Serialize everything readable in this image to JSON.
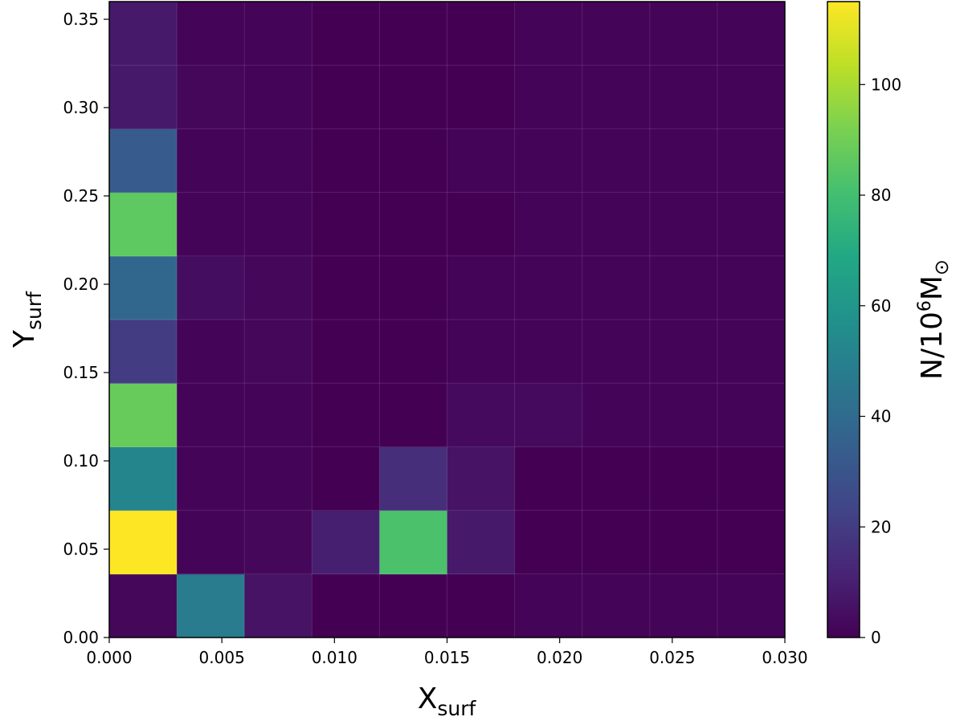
{
  "chart_data": {
    "type": "heatmap",
    "x_edges": [
      0.0,
      0.003,
      0.006,
      0.009,
      0.012,
      0.015,
      0.018,
      0.021,
      0.024,
      0.027,
      0.03
    ],
    "y_edges": [
      0.0,
      0.036,
      0.072,
      0.108,
      0.144,
      0.18,
      0.216,
      0.252,
      0.288,
      0.324,
      0.36
    ],
    "values": [
      [
        2,
        48,
        6,
        0,
        0,
        0,
        1,
        1,
        1,
        1
      ],
      [
        115,
        1,
        2,
        10,
        82,
        8,
        0,
        0,
        0,
        0
      ],
      [
        52,
        1,
        1,
        0,
        15,
        6,
        0,
        0,
        0,
        0
      ],
      [
        88,
        1,
        1,
        0,
        0,
        3,
        3,
        1,
        1,
        1
      ],
      [
        20,
        1,
        2,
        0,
        0,
        1,
        1,
        1,
        1,
        1
      ],
      [
        38,
        4,
        2,
        0,
        0,
        1,
        1,
        1,
        1,
        1
      ],
      [
        86,
        1,
        1,
        0,
        0,
        0,
        1,
        1,
        1,
        1
      ],
      [
        33,
        1,
        1,
        0,
        0,
        1,
        1,
        1,
        1,
        1
      ],
      [
        8,
        2,
        1,
        0,
        0,
        0,
        1,
        1,
        1,
        1
      ],
      [
        8,
        1,
        1,
        0,
        0,
        0,
        1,
        1,
        1,
        1
      ]
    ],
    "xlim": [
      0.0,
      0.03
    ],
    "ylim": [
      0.0,
      0.36
    ],
    "xticks": [
      "0.000",
      "0.005",
      "0.010",
      "0.015",
      "0.020",
      "0.025",
      "0.030"
    ],
    "yticks": [
      "0.00",
      "0.05",
      "0.10",
      "0.15",
      "0.20",
      "0.25",
      "0.30",
      "0.35"
    ],
    "xlabel": {
      "main": "X",
      "sub": "surf"
    },
    "ylabel": {
      "main": "Y",
      "sub": "surf"
    },
    "colorbar": {
      "range": [
        0,
        115
      ],
      "ticks": [
        "0",
        "20",
        "40",
        "60",
        "80",
        "100"
      ],
      "label": {
        "prefix": "N/10",
        "sup": "6",
        "suffix": "M",
        "symbol": "⊙"
      }
    },
    "colormap": "viridis",
    "grid": true
  }
}
